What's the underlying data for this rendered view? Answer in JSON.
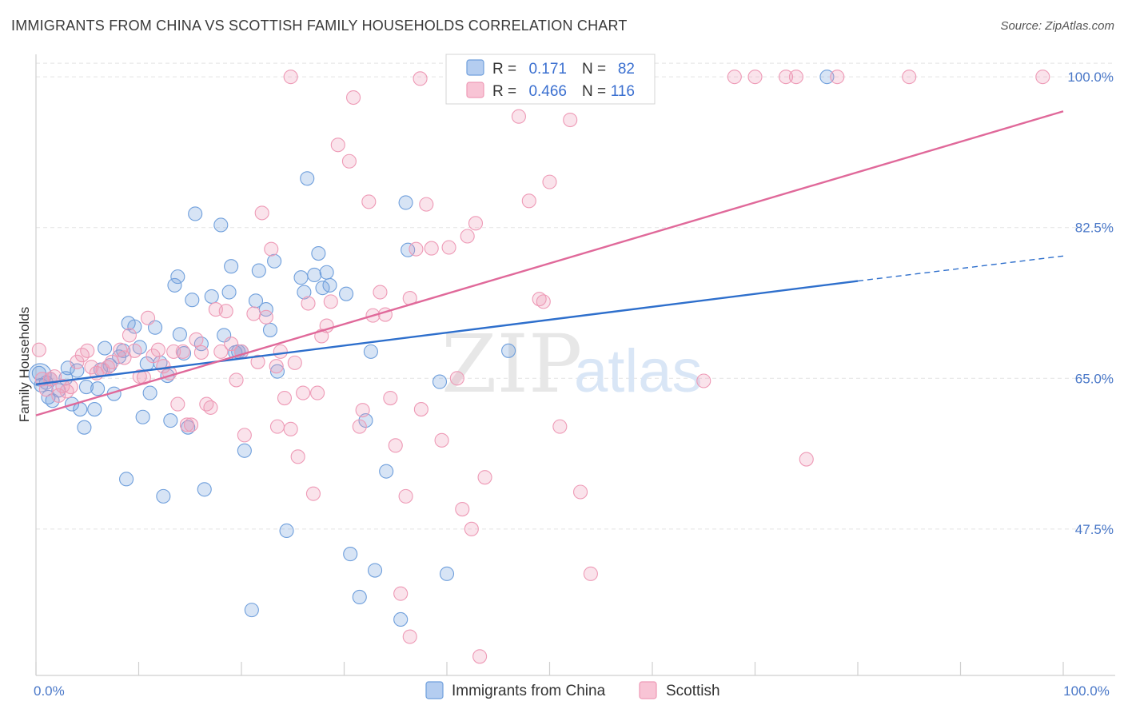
{
  "title": "IMMIGRANTS FROM CHINA VS SCOTTISH FAMILY HOUSEHOLDS CORRELATION CHART",
  "source": "Source: ZipAtlas.com",
  "watermark": {
    "zip": "ZIP",
    "atlas": "atlas"
  },
  "colors": {
    "blue": "#6f9fdc",
    "blue_line": "#2e6fcc",
    "pink": "#ee9ab6",
    "pink_line": "#e0699a",
    "tick": "#4a78c8"
  },
  "chart_data": {
    "type": "scatter",
    "title": "IMMIGRANTS FROM CHINA VS SCOTTISH FAMILY HOUSEHOLDS CORRELATION CHART",
    "xlabel": "",
    "ylabel": "Family Households",
    "xlim": [
      0,
      100
    ],
    "ylim": [
      30.5,
      101.5
    ],
    "x_ticks": [
      0,
      10,
      20,
      30,
      40,
      50,
      60,
      70,
      80,
      90,
      100
    ],
    "x_tick_labels": {
      "0": "0.0%",
      "100": "100.0%"
    },
    "y_ticks": [
      47.5,
      65.0,
      82.5,
      100.0
    ],
    "y_tick_labels": [
      "47.5%",
      "65.0%",
      "82.5%",
      "100.0%"
    ],
    "grid": true,
    "legend": {
      "placement": "top-center",
      "rows": [
        {
          "r_label": "R =",
          "r_value": "0.171",
          "n_label": "N =",
          "n_value": "82"
        },
        {
          "r_label": "R =",
          "r_value": "0.466",
          "n_label": "N =",
          "n_value": "116"
        }
      ]
    },
    "bottom_legend": [
      "Immigrants from China",
      "Scottish"
    ],
    "series": [
      {
        "name": "Immigrants from China",
        "color": "#6f9fdc",
        "trend": {
          "x": [
            0,
            80,
            100
          ],
          "y": [
            64.3,
            76.3,
            79.2
          ],
          "solid_until": 80
        },
        "points": [
          [
            0.3,
            65.6
          ],
          [
            0.5,
            64.2
          ],
          [
            1.2,
            62.8
          ],
          [
            1.4,
            64.9
          ],
          [
            1.6,
            62.4
          ],
          [
            2.2,
            63.6
          ],
          [
            2.9,
            65.0
          ],
          [
            3.1,
            66.2
          ],
          [
            3.5,
            62.0
          ],
          [
            4.0,
            65.9
          ],
          [
            4.3,
            61.4
          ],
          [
            4.7,
            59.3
          ],
          [
            4.9,
            64.0
          ],
          [
            5.7,
            61.4
          ],
          [
            6.0,
            63.8
          ],
          [
            6.3,
            66.0
          ],
          [
            6.7,
            68.5
          ],
          [
            7.2,
            66.5
          ],
          [
            7.6,
            63.2
          ],
          [
            8.1,
            67.5
          ],
          [
            8.5,
            68.2
          ],
          [
            8.8,
            53.3
          ],
          [
            9.0,
            71.4
          ],
          [
            9.6,
            71.0
          ],
          [
            10.1,
            68.6
          ],
          [
            10.4,
            60.5
          ],
          [
            10.8,
            66.7
          ],
          [
            11.1,
            63.3
          ],
          [
            11.6,
            70.9
          ],
          [
            12.1,
            66.8
          ],
          [
            12.4,
            51.3
          ],
          [
            12.8,
            65.3
          ],
          [
            13.1,
            60.1
          ],
          [
            13.5,
            75.8
          ],
          [
            13.8,
            76.8
          ],
          [
            14.0,
            70.1
          ],
          [
            14.4,
            67.9
          ],
          [
            14.8,
            59.3
          ],
          [
            15.2,
            74.1
          ],
          [
            15.5,
            84.1
          ],
          [
            16.1,
            69.0
          ],
          [
            16.4,
            52.1
          ],
          [
            17.1,
            74.5
          ],
          [
            18.0,
            82.8
          ],
          [
            18.3,
            70.0
          ],
          [
            18.8,
            75.0
          ],
          [
            19.0,
            78.0
          ],
          [
            19.4,
            68.0
          ],
          [
            19.7,
            68.1
          ],
          [
            20.0,
            68.1
          ],
          [
            20.3,
            56.6
          ],
          [
            21.0,
            38.1
          ],
          [
            21.4,
            74.0
          ],
          [
            21.7,
            77.5
          ],
          [
            22.4,
            73.0
          ],
          [
            22.8,
            70.6
          ],
          [
            23.2,
            78.6
          ],
          [
            23.5,
            65.8
          ],
          [
            24.4,
            47.3
          ],
          [
            25.8,
            76.7
          ],
          [
            26.1,
            75.0
          ],
          [
            26.4,
            88.2
          ],
          [
            27.1,
            77.0
          ],
          [
            27.5,
            79.5
          ],
          [
            27.9,
            75.5
          ],
          [
            28.3,
            77.3
          ],
          [
            28.6,
            75.8
          ],
          [
            30.2,
            74.8
          ],
          [
            30.6,
            44.6
          ],
          [
            31.5,
            39.6
          ],
          [
            32.1,
            60.1
          ],
          [
            32.6,
            68.1
          ],
          [
            33.0,
            42.7
          ],
          [
            34.1,
            54.2
          ],
          [
            35.5,
            37.0
          ],
          [
            36.0,
            85.4
          ],
          [
            36.2,
            79.9
          ],
          [
            39.3,
            64.6
          ],
          [
            40.0,
            42.3
          ],
          [
            46.0,
            68.2
          ],
          [
            77.0,
            100.0
          ],
          [
            1.0,
            64.5
          ]
        ]
      },
      {
        "name": "Scottish",
        "color": "#ee9ab6",
        "trend": {
          "x": [
            0,
            100
          ],
          "y": [
            60.7,
            96.0
          ],
          "solid_until": 100
        },
        "points": [
          [
            0.3,
            68.3
          ],
          [
            0.6,
            64.9
          ],
          [
            1.0,
            63.7
          ],
          [
            1.4,
            64.9
          ],
          [
            1.8,
            65.2
          ],
          [
            2.2,
            63.0
          ],
          [
            2.6,
            64.1
          ],
          [
            3.0,
            63.5
          ],
          [
            3.4,
            64.0
          ],
          [
            4.0,
            66.9
          ],
          [
            4.5,
            67.7
          ],
          [
            5.0,
            68.2
          ],
          [
            5.4,
            66.3
          ],
          [
            5.9,
            65.6
          ],
          [
            6.5,
            66.0
          ],
          [
            7.0,
            66.3
          ],
          [
            7.4,
            66.9
          ],
          [
            8.2,
            68.3
          ],
          [
            8.6,
            67.4
          ],
          [
            9.1,
            70.0
          ],
          [
            9.6,
            68.2
          ],
          [
            10.1,
            65.2
          ],
          [
            10.5,
            65.1
          ],
          [
            10.9,
            72.0
          ],
          [
            11.4,
            67.6
          ],
          [
            11.9,
            68.3
          ],
          [
            12.4,
            66.4
          ],
          [
            13.0,
            65.6
          ],
          [
            13.4,
            68.1
          ],
          [
            13.8,
            62.0
          ],
          [
            14.3,
            68.1
          ],
          [
            14.7,
            59.6
          ],
          [
            15.1,
            59.6
          ],
          [
            15.6,
            69.5
          ],
          [
            16.1,
            68.0
          ],
          [
            16.6,
            62.0
          ],
          [
            17.0,
            61.6
          ],
          [
            17.5,
            73.0
          ],
          [
            18.0,
            68.1
          ],
          [
            18.5,
            72.8
          ],
          [
            19.0,
            69.0
          ],
          [
            19.5,
            64.8
          ],
          [
            20.0,
            68.1
          ],
          [
            20.3,
            58.4
          ],
          [
            21.2,
            72.5
          ],
          [
            21.6,
            66.9
          ],
          [
            22.0,
            84.2
          ],
          [
            22.4,
            72.1
          ],
          [
            22.9,
            80.0
          ],
          [
            23.4,
            66.4
          ],
          [
            23.8,
            68.1
          ],
          [
            24.2,
            62.7
          ],
          [
            24.8,
            59.1
          ],
          [
            25.2,
            66.8
          ],
          [
            25.5,
            55.9
          ],
          [
            26.0,
            63.3
          ],
          [
            26.5,
            73.7
          ],
          [
            27.0,
            51.6
          ],
          [
            27.4,
            63.3
          ],
          [
            27.8,
            69.9
          ],
          [
            28.3,
            71.1
          ],
          [
            28.7,
            73.9
          ],
          [
            29.4,
            92.1
          ],
          [
            30.5,
            90.2
          ],
          [
            30.9,
            97.6
          ],
          [
            31.5,
            59.4
          ],
          [
            31.8,
            61.3
          ],
          [
            32.4,
            85.5
          ],
          [
            32.8,
            72.3
          ],
          [
            33.5,
            75.0
          ],
          [
            34.0,
            72.4
          ],
          [
            34.5,
            62.7
          ],
          [
            35.0,
            57.2
          ],
          [
            35.5,
            40.0
          ],
          [
            36.0,
            51.3
          ],
          [
            36.4,
            74.3
          ],
          [
            37.0,
            80.0
          ],
          [
            37.5,
            61.4
          ],
          [
            38.0,
            85.2
          ],
          [
            38.5,
            80.1
          ],
          [
            39.5,
            57.8
          ],
          [
            40.2,
            80.2
          ],
          [
            41.0,
            65.0
          ],
          [
            41.5,
            49.8
          ],
          [
            42.0,
            81.5
          ],
          [
            42.4,
            47.5
          ],
          [
            42.8,
            83.0
          ],
          [
            43.2,
            32.7
          ],
          [
            43.7,
            53.5
          ],
          [
            44.5,
            100.0
          ],
          [
            46.0,
            100.0
          ],
          [
            47.0,
            95.4
          ],
          [
            48.0,
            85.6
          ],
          [
            49.0,
            74.2
          ],
          [
            49.4,
            73.9
          ],
          [
            50.0,
            87.8
          ],
          [
            51.0,
            59.4
          ],
          [
            52.0,
            95.0
          ],
          [
            53.0,
            51.8
          ],
          [
            54.0,
            42.3
          ],
          [
            56.0,
            100.0
          ],
          [
            59.0,
            100.0
          ],
          [
            65.0,
            64.7
          ],
          [
            68.0,
            100.0
          ],
          [
            70.0,
            100.0
          ],
          [
            73.0,
            100.0
          ],
          [
            74.0,
            100.0
          ],
          [
            75.0,
            55.6
          ],
          [
            78.0,
            100.0
          ],
          [
            85.0,
            100.0
          ],
          [
            98.0,
            100.0
          ],
          [
            24.8,
            100.0
          ],
          [
            23.5,
            59.4
          ],
          [
            37.4,
            99.8
          ],
          [
            44.7,
            99.9
          ],
          [
            36.4,
            35.0
          ]
        ]
      }
    ]
  }
}
